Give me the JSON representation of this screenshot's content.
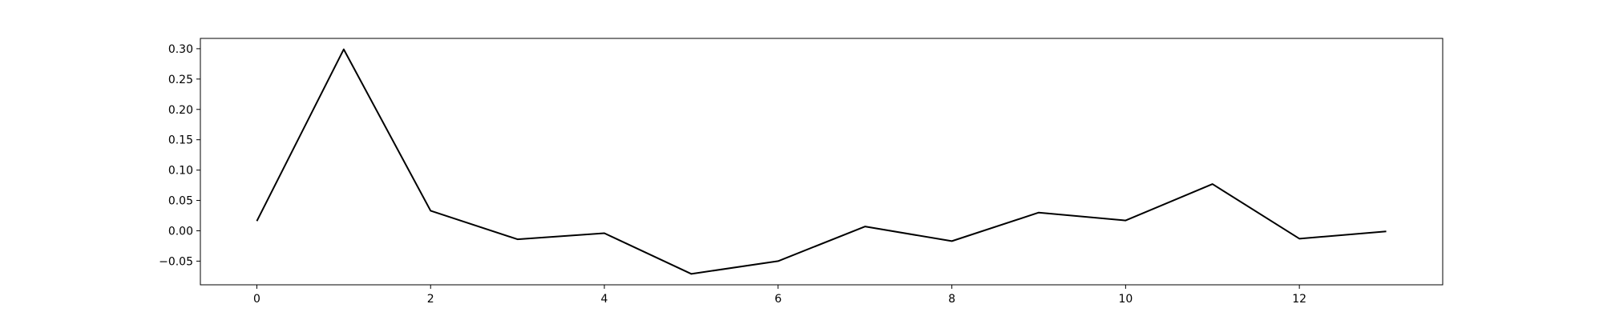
{
  "chart_data": {
    "type": "line",
    "x": [
      0,
      1,
      2,
      3,
      4,
      5,
      6,
      7,
      8,
      9,
      10,
      11,
      12,
      13
    ],
    "series": [
      {
        "values": [
          0.016,
          0.299,
          0.033,
          -0.014,
          -0.004,
          -0.071,
          -0.05,
          0.007,
          -0.017,
          0.03,
          0.017,
          0.077,
          -0.013,
          -0.001
        ]
      }
    ],
    "xlim": [
      -0.65,
      13.65
    ],
    "ylim": [
      -0.089,
      0.317
    ],
    "x_ticks": [
      0,
      2,
      4,
      6,
      8,
      10,
      12
    ],
    "x_tick_labels": [
      "0",
      "2",
      "4",
      "6",
      "8",
      "10",
      "12"
    ],
    "y_ticks": [
      -0.05,
      0.0,
      0.05,
      0.1,
      0.15,
      0.2,
      0.25,
      0.3
    ],
    "y_tick_labels": [
      "−0.05",
      "0.00",
      "0.05",
      "0.10",
      "0.15",
      "0.20",
      "0.25",
      "0.30"
    ],
    "grid": false,
    "line_color": "#000000",
    "title": "",
    "xlabel": "",
    "ylabel": ""
  }
}
